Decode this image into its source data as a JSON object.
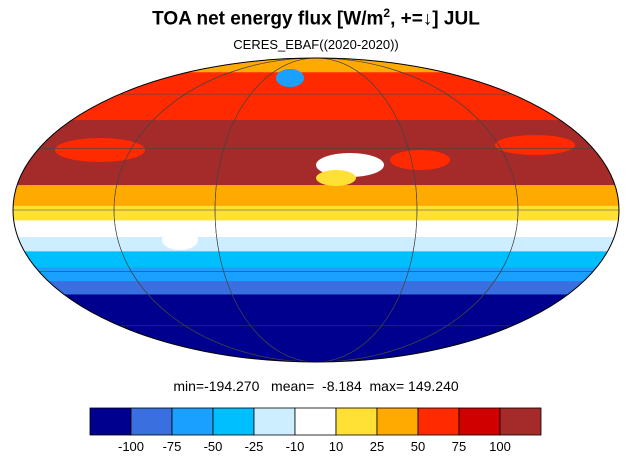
{
  "title": {
    "main": "TOA net energy flux  [W/m",
    "sup": "2",
    "rest": ", +=↓] JUL"
  },
  "subtitle": "CERES_EBAF((2020-2020))",
  "stats": {
    "min_label": "min=",
    "min": "-194.270",
    "mean_label": "mean=",
    "mean": "-8.184",
    "max_label": "max=",
    "max": "149.240"
  },
  "colorbar": {
    "levels": [
      "-100",
      "-75",
      "-50",
      "-25",
      "-10",
      "10",
      "25",
      "50",
      "75",
      "100"
    ],
    "colors": [
      "#00008f",
      "#3a6fe0",
      "#1aa0ff",
      "#00bfff",
      "#cceeff",
      "#ffffff",
      "#ffe135",
      "#ffaa00",
      "#ff2a00",
      "#d10000",
      "#a52a2a"
    ]
  },
  "map": {
    "projection": "Mollweide",
    "lat_bands": [
      {
        "from": 90,
        "to": 75,
        "color": "#ffaa00"
      },
      {
        "from": 75,
        "to": 45,
        "color": "#ff2a00"
      },
      {
        "from": 45,
        "to": 12,
        "color": "#a52a2a"
      },
      {
        "from": 12,
        "to": 2,
        "color": "#ffaa00"
      },
      {
        "from": 2,
        "to": -5,
        "color": "#ffe135"
      },
      {
        "from": -5,
        "to": -13,
        "color": "#ffffff"
      },
      {
        "from": -13,
        "to": -20,
        "color": "#cceeff"
      },
      {
        "from": -20,
        "to": -28,
        "color": "#00bfff"
      },
      {
        "from": -28,
        "to": -35,
        "color": "#1aa0ff"
      },
      {
        "from": -35,
        "to": -42,
        "color": "#3a6fe0"
      },
      {
        "from": -42,
        "to": -90,
        "color": "#00008f"
      }
    ]
  }
}
